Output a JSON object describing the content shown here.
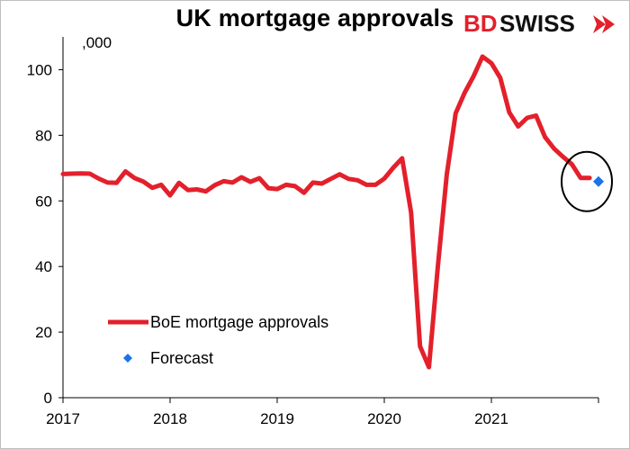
{
  "header": {
    "title": "UK mortgage approvals"
  },
  "logo": {
    "text_red": "BD",
    "text_dark": "SWISS",
    "icon": "double-chevron-right-icon",
    "color": "#e3202b"
  },
  "chart_data": {
    "type": "line",
    "title": "UK mortgage approvals",
    "unit_label": ",000",
    "xlabel": "",
    "ylabel": "",
    "ylim": [
      0,
      110
    ],
    "yticks": [
      0,
      20,
      40,
      60,
      80,
      100
    ],
    "xlim": [
      "2017-01",
      "2022-01"
    ],
    "xticks": [
      "2017",
      "2018",
      "2019",
      "2020",
      "2021"
    ],
    "grid": false,
    "legend_position": "lower-left",
    "series": [
      {
        "name": "BoE mortgage approvals",
        "color": "#e3202b",
        "marker": "line",
        "x": [
          "2017-01",
          "2017-02",
          "2017-03",
          "2017-04",
          "2017-05",
          "2017-06",
          "2017-07",
          "2017-08",
          "2017-09",
          "2017-10",
          "2017-11",
          "2017-12",
          "2018-01",
          "2018-02",
          "2018-03",
          "2018-04",
          "2018-05",
          "2018-06",
          "2018-07",
          "2018-08",
          "2018-09",
          "2018-10",
          "2018-11",
          "2018-12",
          "2019-01",
          "2019-02",
          "2019-03",
          "2019-04",
          "2019-05",
          "2019-06",
          "2019-07",
          "2019-08",
          "2019-09",
          "2019-10",
          "2019-11",
          "2019-12",
          "2020-01",
          "2020-02",
          "2020-03",
          "2020-04",
          "2020-05",
          "2020-06",
          "2020-07",
          "2020-08",
          "2020-09",
          "2020-10",
          "2020-11",
          "2020-12",
          "2021-01",
          "2021-02",
          "2021-03",
          "2021-04",
          "2021-05",
          "2021-06",
          "2021-07",
          "2021-08",
          "2021-09",
          "2021-10",
          "2021-11"
        ],
        "values": [
          68.2,
          68.3,
          68.4,
          68.3,
          66.8,
          65.6,
          65.5,
          69.0,
          67.0,
          65.9,
          64.0,
          64.9,
          61.7,
          65.5,
          63.3,
          63.5,
          62.9,
          64.8,
          66.0,
          65.6,
          67.2,
          65.8,
          66.9,
          63.9,
          63.6,
          64.9,
          64.5,
          62.5,
          65.6,
          65.3,
          66.7,
          68.1,
          66.7,
          66.3,
          64.9,
          64.9,
          66.8,
          70.1,
          73.0,
          56.4,
          15.7,
          9.3,
          40.0,
          68.0,
          86.7,
          93.0,
          98.0,
          104.0,
          102.0,
          97.5,
          87.0,
          82.7,
          85.3,
          86.0,
          79.5,
          76.0,
          73.5,
          71.2,
          67.0
        ],
        "final_point": {
          "x": "2021-12",
          "value": 67.0
        }
      },
      {
        "name": "Forecast",
        "color": "#1a73e8",
        "marker": "diamond",
        "x": [
          "2022-01"
        ],
        "values": [
          65.9
        ]
      }
    ],
    "annotations": [
      {
        "type": "circle",
        "around": "Forecast",
        "stroke": "#000000"
      }
    ]
  }
}
